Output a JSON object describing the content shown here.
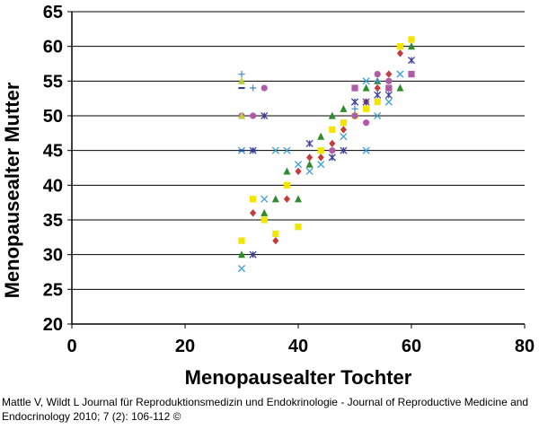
{
  "chart_data": {
    "type": "scatter",
    "xlabel": "Menopausealter Tochter",
    "ylabel": "Menopausealter Mutter",
    "xlim": [
      0,
      80
    ],
    "ylim": [
      20,
      65
    ],
    "x_ticks": [
      0,
      20,
      40,
      60,
      80
    ],
    "y_ticks": [
      20,
      25,
      30,
      35,
      40,
      45,
      50,
      55,
      60,
      65
    ],
    "grid": "horizontal",
    "legend": "none",
    "series": [
      {
        "marker": "square",
        "color": "#f2e600",
        "points": [
          [
            30,
            32
          ],
          [
            32,
            38
          ],
          [
            34,
            35
          ],
          [
            36,
            33
          ],
          [
            38,
            40
          ],
          [
            40,
            34
          ],
          [
            44,
            45
          ],
          [
            46,
            48
          ],
          [
            48,
            49
          ],
          [
            50,
            50
          ],
          [
            52,
            51
          ],
          [
            54,
            52
          ],
          [
            56,
            54
          ],
          [
            58,
            60
          ],
          [
            60,
            61
          ]
        ]
      },
      {
        "marker": "diamond",
        "color": "#c43c3c",
        "points": [
          [
            32,
            36
          ],
          [
            36,
            32
          ],
          [
            38,
            38
          ],
          [
            40,
            42
          ],
          [
            42,
            44
          ],
          [
            44,
            44
          ],
          [
            46,
            46
          ],
          [
            48,
            48
          ],
          [
            50,
            50
          ],
          [
            52,
            52
          ],
          [
            54,
            54
          ],
          [
            56,
            56
          ],
          [
            58,
            59
          ]
        ]
      },
      {
        "marker": "triangle",
        "color": "#2e8b2e",
        "points": [
          [
            30,
            30
          ],
          [
            34,
            36
          ],
          [
            36,
            38
          ],
          [
            38,
            42
          ],
          [
            40,
            38
          ],
          [
            42,
            43
          ],
          [
            44,
            47
          ],
          [
            46,
            50
          ],
          [
            48,
            51
          ],
          [
            52,
            54
          ],
          [
            54,
            55
          ],
          [
            58,
            54
          ],
          [
            60,
            60
          ]
        ]
      },
      {
        "marker": "x",
        "color": "#3aa0d8",
        "points": [
          [
            30,
            28
          ],
          [
            30,
            45
          ],
          [
            34,
            38
          ],
          [
            36,
            45
          ],
          [
            38,
            45
          ],
          [
            40,
            43
          ],
          [
            42,
            42
          ],
          [
            44,
            43
          ],
          [
            46,
            44
          ],
          [
            48,
            47
          ],
          [
            50,
            52
          ],
          [
            52,
            45
          ],
          [
            52,
            55
          ],
          [
            54,
            50
          ],
          [
            56,
            52
          ],
          [
            58,
            56
          ]
        ]
      },
      {
        "marker": "asterisk",
        "color": "#4040a0",
        "points": [
          [
            32,
            30
          ],
          [
            32,
            45
          ],
          [
            34,
            50
          ],
          [
            42,
            46
          ],
          [
            46,
            44
          ],
          [
            48,
            45
          ],
          [
            50,
            52
          ],
          [
            52,
            52
          ],
          [
            54,
            53
          ],
          [
            56,
            53
          ],
          [
            60,
            58
          ]
        ]
      },
      {
        "marker": "circle",
        "color": "#b05aa8",
        "points": [
          [
            30,
            50
          ],
          [
            32,
            50
          ],
          [
            34,
            54
          ],
          [
            46,
            45
          ],
          [
            50,
            50
          ],
          [
            52,
            49
          ],
          [
            54,
            56
          ],
          [
            56,
            55
          ]
        ]
      },
      {
        "marker": "plus",
        "color": "#4a90c8",
        "points": [
          [
            30,
            56
          ],
          [
            32,
            54
          ],
          [
            50,
            51
          ],
          [
            54,
            55
          ]
        ]
      },
      {
        "marker": "dash",
        "color": "#2a3a8a",
        "points": [
          [
            30,
            54
          ],
          [
            30,
            45
          ],
          [
            32,
            45
          ]
        ]
      },
      {
        "marker": "square",
        "color": "#b05aa8",
        "points": [
          [
            50,
            54
          ],
          [
            56,
            54
          ],
          [
            60,
            56
          ]
        ]
      },
      {
        "marker": "triangle",
        "color": "#b8d040",
        "points": [
          [
            30,
            55
          ],
          [
            30,
            50
          ]
        ]
      }
    ]
  },
  "citation": "Mattle V, Wildt L Journal für Reproduktionsmedizin und Endokrinologie - Journal of Reproductive Medicine and Endocrinology 2010; 7 (2): 106-112 ©"
}
